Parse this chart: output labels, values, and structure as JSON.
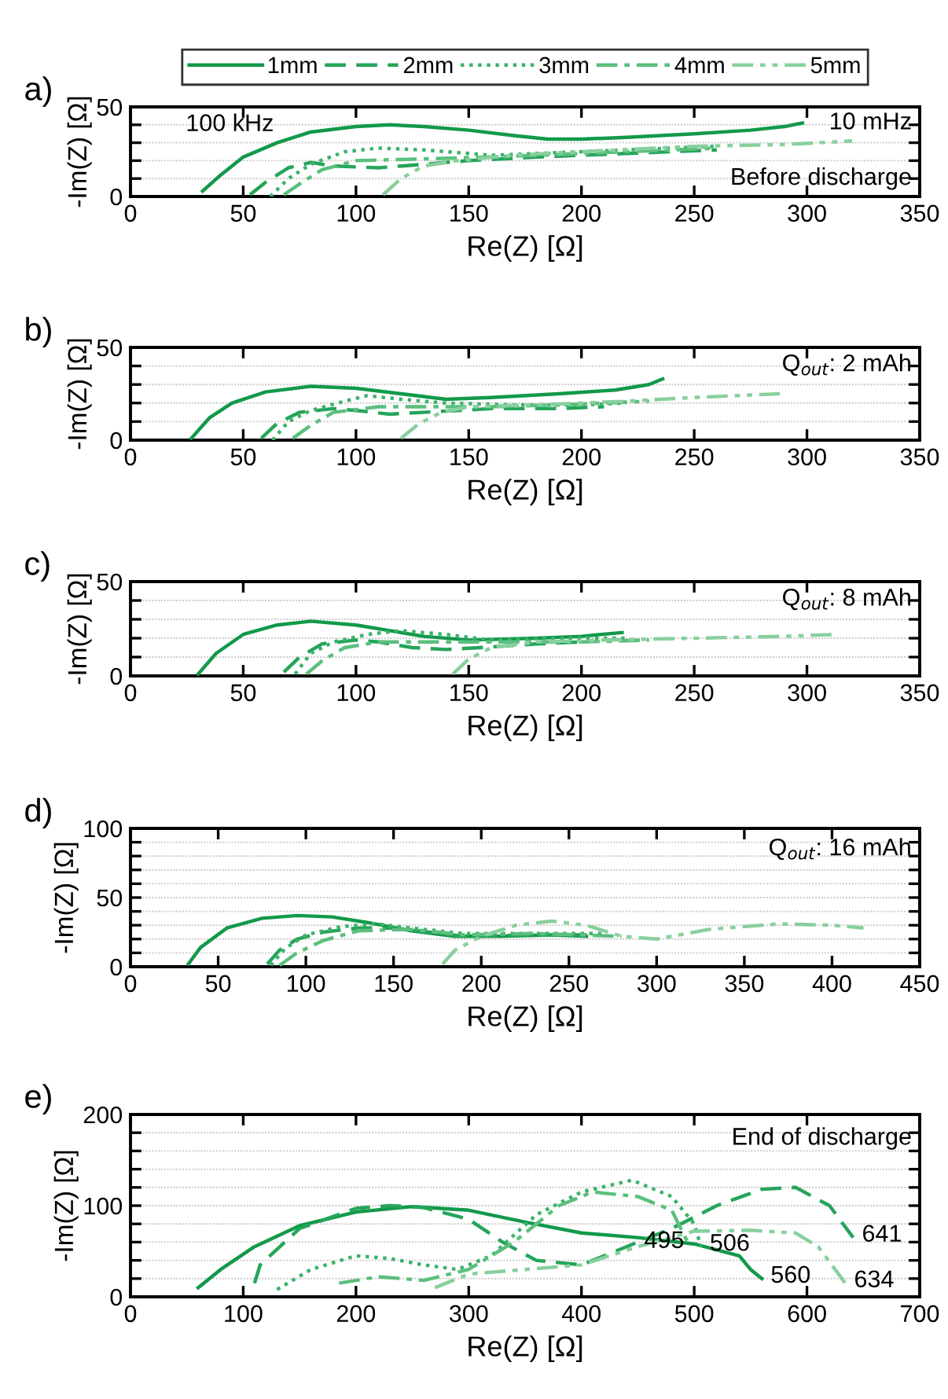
{
  "chart_data": [
    {
      "type": "line",
      "title": "a)",
      "xlabel": "Re(Z) [Ω]",
      "ylabel": "-Im(Z) [Ω]",
      "xlim": [
        0,
        350
      ],
      "xticks": [
        0,
        50,
        100,
        150,
        200,
        250,
        300,
        350
      ],
      "ylim": [
        0,
        50
      ],
      "yticks": [
        0,
        {
          "value": 10,
          "label": null
        },
        {
          "value": 20,
          "label": null
        },
        {
          "value": 30,
          "label": null
        },
        {
          "value": 40,
          "label": null
        },
        50
      ],
      "grid": "y",
      "legend": "top",
      "annotations": [
        "100 kHz",
        "10 mHz",
        "Before discharge"
      ],
      "series": [
        {
          "name": "1mm",
          "color": "#12994a",
          "line_style": "solid",
          "x": [
            32,
            40,
            50,
            65,
            80,
            100,
            115,
            130,
            150,
            170,
            185,
            200,
            220,
            250,
            275,
            290,
            298
          ],
          "values": [
            3,
            12,
            22,
            30,
            36,
            39,
            40,
            39,
            37,
            34,
            32,
            32,
            33,
            35,
            37,
            39,
            41
          ]
        },
        {
          "name": "2mm",
          "color": "#25a55a",
          "line_style": "dashed",
          "x": [
            53,
            60,
            70,
            80,
            90,
            110,
            130,
            150,
            180,
            220,
            260
          ],
          "values": [
            1,
            8,
            16,
            19,
            17,
            16,
            18,
            20,
            22,
            24,
            26
          ]
        },
        {
          "name": "3mm",
          "color": "#3db26b",
          "line_style": "dotted",
          "x": [
            62,
            70,
            80,
            95,
            110,
            130,
            160,
            200,
            240,
            260
          ],
          "values": [
            0,
            10,
            18,
            25,
            27,
            26,
            23,
            25,
            27,
            28
          ]
        },
        {
          "name": "4mm",
          "color": "#5cbf7e",
          "line_style": "dash-dot",
          "x": [
            68,
            75,
            85,
            100,
            130,
            160,
            200,
            240,
            260
          ],
          "values": [
            1,
            7,
            15,
            20,
            21,
            22,
            24,
            26,
            27
          ]
        },
        {
          "name": "5mm",
          "color": "#88d09e",
          "line_style": "dash-dot-dot",
          "x": [
            112,
            120,
            130,
            145,
            170,
            200,
            250,
            290,
            320
          ],
          "values": [
            1,
            10,
            17,
            20,
            23,
            25,
            28,
            29,
            31
          ]
        }
      ]
    },
    {
      "type": "line",
      "title": "b)",
      "xlabel": "Re(Z) [Ω]",
      "ylabel": "-Im(Z) [Ω]",
      "xlim": [
        0,
        350
      ],
      "xticks": [
        0,
        50,
        100,
        150,
        200,
        250,
        300,
        350
      ],
      "ylim": [
        0,
        50
      ],
      "yticks": [
        0,
        {
          "value": 10,
          "label": null
        },
        {
          "value": 20,
          "label": null
        },
        {
          "value": 30,
          "label": null
        },
        {
          "value": 40,
          "label": null
        },
        50
      ],
      "grid": "y",
      "annotations": [
        "Q$_{out}$: 2 mAh"
      ],
      "series": [
        {
          "color": "#12994a",
          "line_style": "solid",
          "x": [
            27,
            35,
            45,
            60,
            80,
            100,
            120,
            140,
            160,
            190,
            215,
            230,
            236
          ],
          "values": [
            1,
            12,
            20,
            26,
            29,
            28,
            25,
            22,
            23,
            25,
            27,
            30,
            33
          ]
        },
        {
          "color": "#25a55a",
          "line_style": "dashed",
          "x": [
            58,
            65,
            75,
            90,
            100,
            115,
            130,
            160,
            190,
            210
          ],
          "values": [
            1,
            9,
            15,
            17,
            16,
            14,
            15,
            17,
            17,
            18
          ]
        },
        {
          "color": "#3db26b",
          "line_style": "dotted",
          "x": [
            63,
            70,
            80,
            95,
            105,
            120,
            140,
            170,
            200,
            220
          ],
          "values": [
            0,
            10,
            16,
            21,
            24,
            22,
            20,
            19,
            19,
            20
          ]
        },
        {
          "color": "#5cbf7e",
          "line_style": "dash-dot",
          "x": [
            72,
            80,
            90,
            110,
            130,
            160,
            190,
            230
          ],
          "values": [
            1,
            8,
            15,
            18,
            18,
            18,
            19,
            21
          ]
        },
        {
          "color": "#88d09e",
          "line_style": "dash-dot-dot",
          "x": [
            120,
            128,
            138,
            150,
            180,
            220,
            250,
            288
          ],
          "values": [
            1,
            9,
            15,
            18,
            19,
            21,
            23,
            25
          ]
        }
      ]
    },
    {
      "type": "line",
      "title": "c)",
      "xlabel": "Re(Z) [Ω]",
      "ylabel": "-Im(Z) [Ω]",
      "xlim": [
        0,
        350
      ],
      "xticks": [
        0,
        50,
        100,
        150,
        200,
        250,
        300,
        350
      ],
      "ylim": [
        0,
        50
      ],
      "yticks": [
        0,
        {
          "value": 10,
          "label": null
        },
        {
          "value": 20,
          "label": null
        },
        {
          "value": 30,
          "label": null
        },
        {
          "value": 40,
          "label": null
        },
        50
      ],
      "grid": "y",
      "annotations": [
        "Q$_{out}$: 8 mAh"
      ],
      "series": [
        {
          "color": "#12994a",
          "line_style": "solid",
          "x": [
            30,
            38,
            50,
            65,
            80,
            100,
            115,
            130,
            150,
            180,
            200,
            218
          ],
          "values": [
            1,
            12,
            22,
            27,
            29,
            27,
            24,
            21,
            19,
            20,
            21,
            23
          ]
        },
        {
          "color": "#25a55a",
          "line_style": "dashed",
          "x": [
            68,
            75,
            85,
            100,
            110,
            125,
            140,
            155,
            180,
            200
          ],
          "values": [
            2,
            10,
            17,
            19,
            18,
            15,
            14,
            15,
            17,
            18
          ]
        },
        {
          "color": "#3db26b",
          "line_style": "dotted",
          "x": [
            73,
            80,
            90,
            105,
            120,
            140,
            160,
            190,
            220
          ],
          "values": [
            1,
            12,
            18,
            22,
            24,
            22,
            19,
            20,
            20
          ]
        },
        {
          "color": "#5cbf7e",
          "line_style": "dash-dot",
          "x": [
            78,
            85,
            95,
            110,
            140,
            170,
            200,
            230
          ],
          "values": [
            1,
            8,
            15,
            18,
            18,
            18,
            18,
            19
          ]
        },
        {
          "color": "#88d09e",
          "line_style": "dash-dot-dot",
          "x": [
            143,
            150,
            160,
            180,
            210,
            250,
            290,
            313
          ],
          "values": [
            1,
            9,
            15,
            18,
            19,
            20,
            21,
            22
          ]
        }
      ]
    },
    {
      "type": "line",
      "title": "d)",
      "xlabel": "Re(Z) [Ω]",
      "ylabel": "-Im(Z) [Ω]",
      "xlim": [
        0,
        450
      ],
      "xticks": [
        0,
        50,
        100,
        150,
        200,
        250,
        300,
        350,
        400,
        450
      ],
      "ylim": [
        0,
        100
      ],
      "yticks": [
        0,
        {
          "value": 10,
          "label": null
        },
        {
          "value": 20,
          "label": null
        },
        {
          "value": 30,
          "label": null
        },
        {
          "value": 40,
          "label": null
        },
        50,
        {
          "value": 60,
          "label": null
        },
        {
          "value": 70,
          "label": null
        },
        {
          "value": 80,
          "label": null
        },
        {
          "value": 90,
          "label": null
        },
        100
      ],
      "grid": "y",
      "annotations": [
        "Q$_{out}$: 16 mAh"
      ],
      "series": [
        {
          "color": "#12994a",
          "line_style": "solid",
          "x": [
            33,
            40,
            55,
            75,
            95,
            115,
            135,
            160,
            185,
            210,
            240,
            260
          ],
          "values": [
            2,
            14,
            28,
            35,
            37,
            36,
            32,
            26,
            22,
            22,
            23,
            22
          ]
        },
        {
          "color": "#25a55a",
          "line_style": "dashed",
          "x": [
            78,
            85,
            95,
            110,
            130,
            150,
            170,
            190,
            230,
            260
          ],
          "values": [
            2,
            12,
            20,
            25,
            28,
            28,
            25,
            22,
            23,
            23
          ]
        },
        {
          "color": "#3db26b",
          "line_style": "dotted",
          "x": [
            80,
            88,
            100,
            120,
            140,
            160,
            190,
            230,
            270
          ],
          "values": [
            1,
            13,
            23,
            29,
            31,
            28,
            24,
            24,
            24
          ]
        },
        {
          "color": "#5cbf7e",
          "line_style": "dash-dot",
          "x": [
            85,
            95,
            110,
            130,
            160,
            190,
            230,
            280
          ],
          "values": [
            1,
            10,
            19,
            26,
            27,
            23,
            24,
            22
          ]
        },
        {
          "color": "#88d09e",
          "line_style": "dash-dot-dot",
          "x": [
            178,
            185,
            200,
            220,
            240,
            260,
            280,
            300,
            330,
            370,
            400,
            418
          ],
          "values": [
            2,
            12,
            22,
            30,
            33,
            30,
            22,
            20,
            27,
            31,
            30,
            28
          ]
        }
      ]
    },
    {
      "type": "line",
      "title": "e)",
      "xlabel": "Re(Z) [Ω]",
      "ylabel": "-Im(Z) [Ω]",
      "xlim": [
        0,
        700
      ],
      "xticks": [
        0,
        100,
        200,
        300,
        400,
        500,
        600,
        700
      ],
      "ylim": [
        0,
        200
      ],
      "yticks": [
        0,
        {
          "value": 20,
          "label": null
        },
        {
          "value": 40,
          "label": null
        },
        {
          "value": 60,
          "label": null
        },
        {
          "value": 80,
          "label": null
        },
        100,
        {
          "value": 120,
          "label": null
        },
        {
          "value": 140,
          "label": null
        },
        {
          "value": 160,
          "label": null
        },
        {
          "value": 180,
          "label": null
        },
        200
      ],
      "grid": "y",
      "annotations": [
        "End of discharge",
        {
          "text": "495",
          "x": 495,
          "y": 58
        },
        {
          "text": "506",
          "x": 506,
          "y": 55
        },
        {
          "text": "560",
          "x": 560,
          "y": 20
        },
        {
          "text": "641",
          "x": 641,
          "y": 65
        },
        {
          "text": "634",
          "x": 634,
          "y": 15
        }
      ],
      "series": [
        {
          "color": "#12994a",
          "line_style": "solid",
          "x": [
            60,
            80,
            110,
            150,
            200,
            250,
            300,
            350,
            400,
            450,
            500,
            540,
            550,
            560
          ],
          "values": [
            10,
            30,
            55,
            78,
            93,
            99,
            95,
            82,
            70,
            65,
            58,
            45,
            30,
            20
          ]
        },
        {
          "color": "#25a55a",
          "line_style": "dashed",
          "x": [
            110,
            115,
            150,
            200,
            230,
            260,
            300,
            330,
            360,
            400,
            440,
            480,
            520,
            560,
            590,
            620,
            641
          ],
          "values": [
            15,
            35,
            75,
            97,
            100,
            98,
            85,
            60,
            40,
            35,
            55,
            75,
            100,
            118,
            120,
            100,
            65
          ]
        },
        {
          "color": "#3db26b",
          "line_style": "dotted",
          "x": [
            130,
            160,
            200,
            230,
            260,
            290,
            320,
            360,
            400,
            445,
            480,
            500,
            506
          ],
          "values": [
            8,
            30,
            45,
            42,
            35,
            30,
            45,
            90,
            115,
            128,
            110,
            80,
            55
          ]
        },
        {
          "color": "#5cbf7e",
          "line_style": "dash-dot",
          "x": [
            185,
            220,
            260,
            300,
            340,
            380,
            410,
            450,
            480,
            495
          ],
          "values": [
            15,
            22,
            18,
            30,
            60,
            100,
            115,
            110,
            95,
            58
          ]
        },
        {
          "color": "#88d09e",
          "line_style": "dash-dot-dot",
          "x": [
            270,
            300,
            350,
            400,
            450,
            500,
            550,
            590,
            610,
            634
          ],
          "values": [
            10,
            25,
            30,
            35,
            55,
            72,
            73,
            70,
            55,
            15
          ]
        }
      ]
    }
  ]
}
